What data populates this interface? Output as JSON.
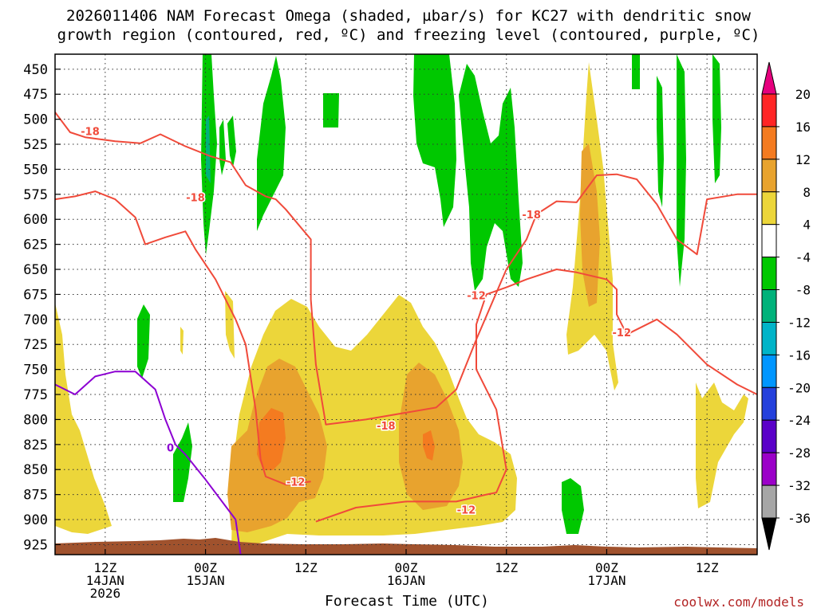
{
  "title_line1": "2026011406 NAM Forecast Omega (shaded, µbar/s) for KC27 with dendritic snow",
  "title_line2": "growth region (contoured, red, ºC) and freezing level (contoured, purple, ºC)",
  "credit": "coolwx.com/models",
  "chart_data": {
    "type": "heatmap",
    "xlabel": "Forecast Time (UTC)",
    "y_axis": {
      "levels": [
        450,
        475,
        500,
        525,
        550,
        575,
        600,
        625,
        650,
        675,
        700,
        725,
        750,
        775,
        800,
        825,
        850,
        875,
        900,
        925
      ],
      "range": [
        435,
        935
      ],
      "inverted": true,
      "grid": true
    },
    "x_axis": {
      "range_hours": [
        0,
        70
      ],
      "ticks": [
        {
          "hour": 5,
          "label": "12Z",
          "sub1": "14JAN",
          "sub2": "2026"
        },
        {
          "hour": 15,
          "label": "00Z",
          "sub1": "15JAN",
          "sub2": ""
        },
        {
          "hour": 25,
          "label": "12Z",
          "sub1": "",
          "sub2": ""
        },
        {
          "hour": 35,
          "label": "00Z",
          "sub1": "16JAN",
          "sub2": ""
        },
        {
          "hour": 45,
          "label": "12Z",
          "sub1": "",
          "sub2": ""
        },
        {
          "hour": 55,
          "label": "00Z",
          "sub1": "17JAN",
          "sub2": ""
        },
        {
          "hour": 65,
          "label": "12Z",
          "sub1": "",
          "sub2": ""
        }
      ],
      "grid": true
    },
    "colorbar": {
      "labels": [
        "20",
        "16",
        "12",
        "8",
        "4",
        "-4",
        "-8",
        "-12",
        "-16",
        "-20",
        "-24",
        "-28",
        "-32",
        "-36"
      ],
      "colors": [
        "#ff2525",
        "#f47b20",
        "#e8a32e",
        "#ecd63a",
        "#ffffff",
        "#00c800",
        "#00b27a",
        "#00b4c8",
        "#0096ff",
        "#2440dc",
        "#5a00c8",
        "#9b00c8",
        "#a6a6a6"
      ],
      "top_arrow_color": "#e6007e",
      "bottom_arrow_color": "#000000"
    },
    "series": [
      {
        "name": "-18",
        "contour_color": "#f04a3a",
        "points": [
          [
            0,
            493
          ],
          [
            1.5,
            513
          ],
          [
            3,
            518
          ],
          [
            6,
            522
          ],
          [
            8.5,
            524
          ],
          [
            10.5,
            515
          ],
          [
            13,
            527
          ],
          [
            15.5,
            537
          ],
          [
            17.5,
            543
          ],
          [
            19,
            566
          ],
          [
            21,
            577
          ],
          [
            22,
            580
          ],
          [
            23,
            590
          ],
          [
            25.5,
            620
          ],
          [
            25.5,
            680
          ],
          [
            26,
            745
          ],
          [
            27,
            805
          ],
          [
            31,
            800
          ],
          [
            38,
            788
          ],
          [
            40,
            770
          ],
          [
            42,
            720
          ],
          [
            45,
            650
          ],
          [
            47,
            620
          ],
          [
            48,
            595
          ],
          [
            50,
            582
          ],
          [
            52,
            583
          ],
          [
            54,
            556
          ],
          [
            56,
            555
          ],
          [
            58,
            560
          ],
          [
            60,
            585
          ],
          [
            62,
            620
          ],
          [
            64,
            635
          ],
          [
            65,
            580
          ],
          [
            68,
            575
          ],
          [
            70,
            575
          ]
        ]
      },
      {
        "name": "-18",
        "contour_color": "#f04a3a",
        "points": [
          [
            0,
            580
          ],
          [
            2,
            577
          ],
          [
            4,
            572
          ],
          [
            6,
            580
          ],
          [
            8,
            598
          ],
          [
            9,
            625
          ],
          [
            11,
            618
          ],
          [
            13,
            612
          ],
          [
            14,
            630
          ],
          [
            16,
            660
          ],
          [
            17,
            680
          ],
          [
            18,
            700
          ],
          [
            19,
            725
          ],
          [
            20,
            790
          ],
          [
            20.5,
            840
          ],
          [
            21,
            857
          ],
          [
            23,
            865
          ],
          [
            25.5,
            862
          ]
        ]
      },
      {
        "name": "-12",
        "contour_color": "#f04a3a",
        "points": [
          [
            26,
            902
          ],
          [
            30,
            888
          ],
          [
            35,
            882
          ],
          [
            40,
            882
          ],
          [
            43,
            875
          ],
          [
            44,
            873
          ],
          [
            45,
            850
          ],
          [
            44,
            790
          ],
          [
            42,
            750
          ],
          [
            42,
            705
          ],
          [
            43,
            675
          ],
          [
            45,
            668
          ],
          [
            47,
            660
          ],
          [
            50,
            650
          ],
          [
            52,
            653
          ],
          [
            55,
            660
          ],
          [
            56,
            670
          ],
          [
            56,
            695
          ],
          [
            57,
            715
          ],
          [
            60,
            700
          ],
          [
            62,
            715
          ],
          [
            65,
            745
          ],
          [
            68,
            765
          ],
          [
            70,
            775
          ]
        ]
      },
      {
        "name": "freezing level 0",
        "contour_color": "#8c00d2",
        "points": [
          [
            0,
            765
          ],
          [
            2,
            775
          ],
          [
            4,
            757
          ],
          [
            6,
            752
          ],
          [
            8,
            752
          ],
          [
            10,
            770
          ],
          [
            11,
            800
          ],
          [
            12,
            825
          ],
          [
            13,
            835
          ],
          [
            15,
            860
          ],
          [
            18,
            900
          ],
          [
            18.5,
            935
          ]
        ]
      }
    ]
  }
}
